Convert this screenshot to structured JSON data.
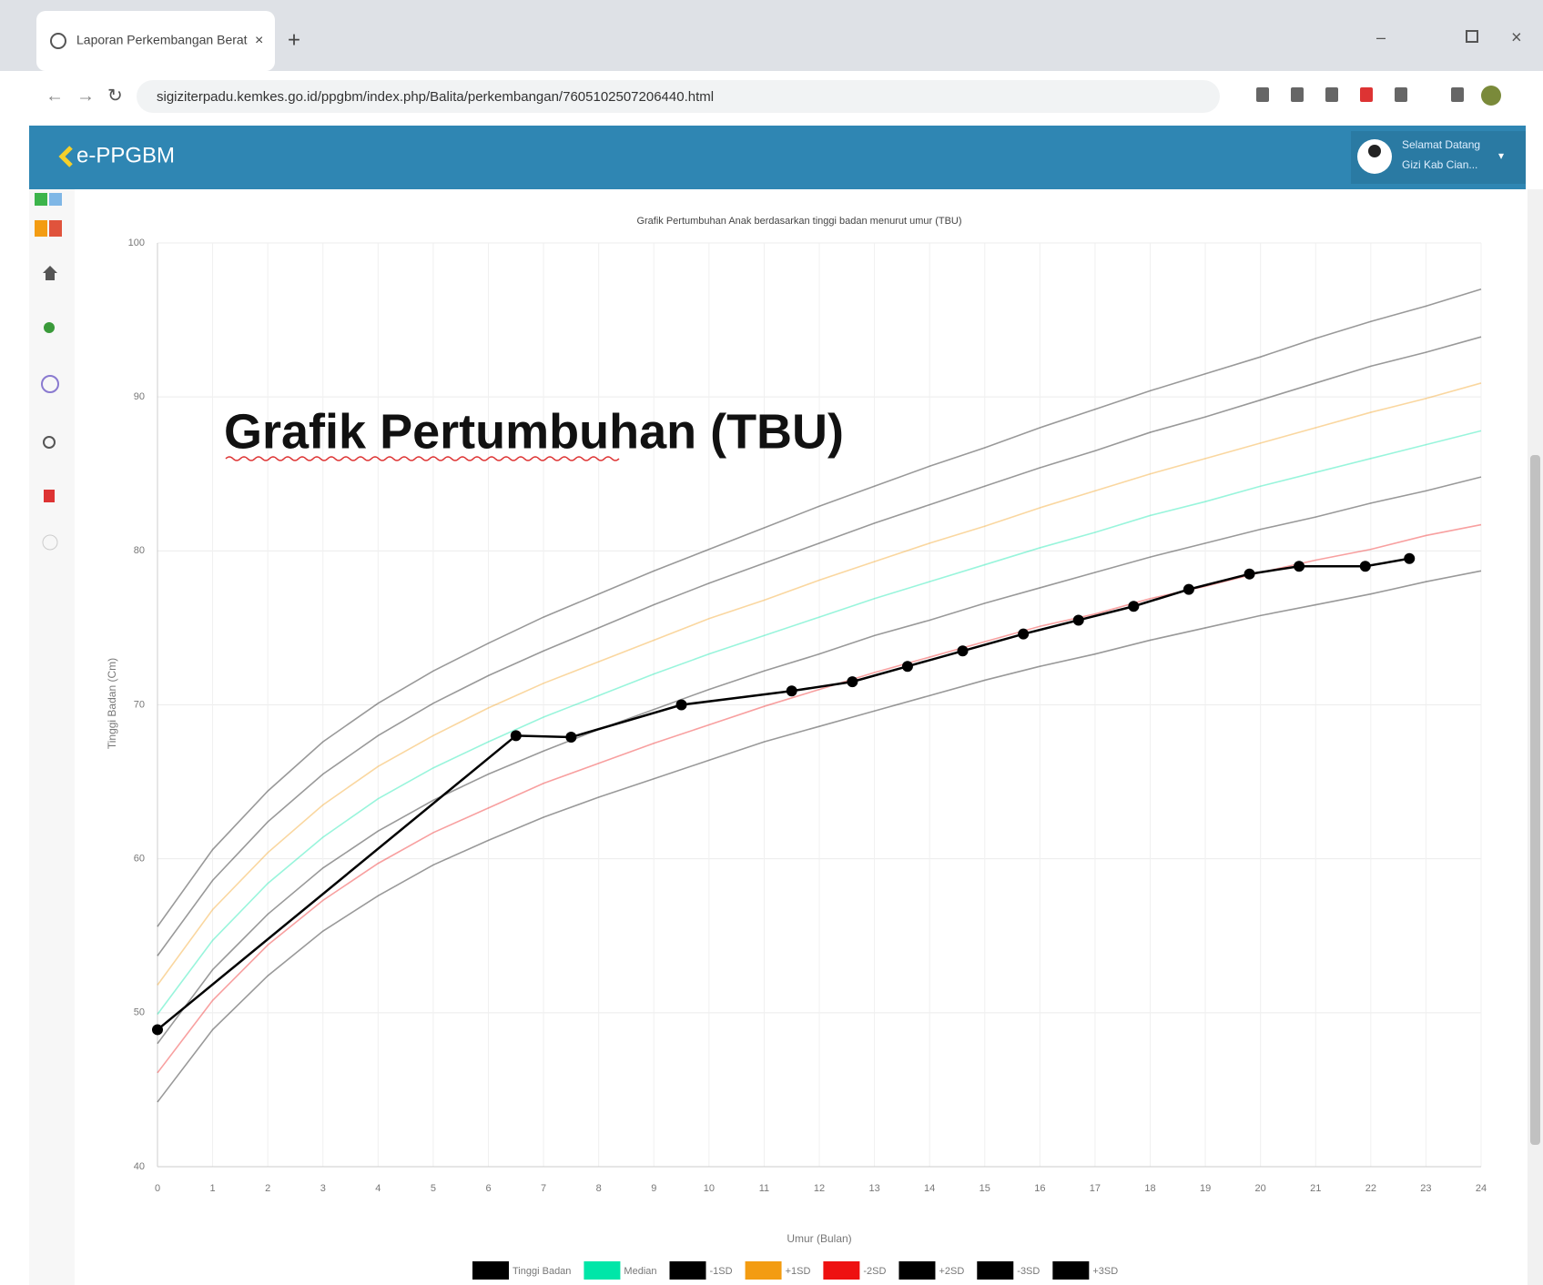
{
  "browser": {
    "tab_title": "Laporan Perkembangan Berat",
    "url": "sigiziterpadu.kemkes.go.id/ppgbm/index.php/Balita/perkembangan/7605102507206440.html"
  },
  "app": {
    "brand": "e-PPGBM",
    "user_greeting": "Selamat Datang",
    "user_name": "Gizi Kab Cian..."
  },
  "annotation": "Grafik Pertumbuhan (TBU)",
  "chart_data": {
    "type": "line",
    "title": "Grafik Pertumbuhan Anak berdasarkan tinggi badan menurut umur (TBU)",
    "x_label": "Umur (Bulan)",
    "y_label": "Tinggi Badan (Cm)",
    "x": [
      0,
      1,
      2,
      3,
      4,
      5,
      6,
      7,
      8,
      9,
      10,
      11,
      12,
      13,
      14,
      15,
      16,
      17,
      18,
      19,
      20,
      21,
      22,
      23,
      24
    ],
    "xlim": [
      0,
      24
    ],
    "xticks": [
      0,
      1,
      2,
      3,
      4,
      5,
      6,
      7,
      8,
      9,
      10,
      11,
      12,
      13,
      14,
      15,
      16,
      17,
      18,
      19,
      20,
      21,
      22,
      23,
      24
    ],
    "ylim": [
      40,
      100
    ],
    "yticks": [
      40,
      50,
      60,
      70,
      80,
      90,
      100
    ],
    "grid": true,
    "series": [
      {
        "name": "Tinggi Badan",
        "color": "#000000",
        "x": [
          0,
          6.5,
          7.5,
          9.5,
          11.5,
          12.6,
          13.6,
          14.6,
          15.7,
          16.7,
          17.7,
          18.7,
          19.8,
          20.7,
          21.9,
          22.7
        ],
        "values": [
          48.9,
          68.0,
          67.9,
          70.0,
          70.9,
          71.5,
          72.5,
          73.5,
          74.6,
          75.5,
          76.4,
          77.5,
          78.5,
          79.0,
          79.0,
          79.5
        ]
      },
      {
        "name": "Median",
        "color": "#00e6a8",
        "values": [
          49.9,
          54.7,
          58.4,
          61.4,
          63.9,
          65.9,
          67.6,
          69.2,
          70.6,
          72.0,
          73.3,
          74.5,
          75.7,
          76.9,
          78.0,
          79.1,
          80.2,
          81.2,
          82.3,
          83.2,
          84.2,
          85.1,
          86.0,
          86.9,
          87.8
        ]
      },
      {
        "name": "-1SD",
        "color": "#000000",
        "values": [
          48.0,
          52.8,
          56.4,
          59.4,
          61.8,
          63.8,
          65.5,
          67.0,
          68.4,
          69.7,
          71.0,
          72.2,
          73.3,
          74.5,
          75.5,
          76.6,
          77.6,
          78.6,
          79.6,
          80.5,
          81.4,
          82.2,
          83.1,
          83.9,
          84.8
        ]
      },
      {
        "name": "+1SD",
        "color": "#f39c12",
        "values": [
          51.8,
          56.7,
          60.4,
          63.5,
          66.0,
          68.0,
          69.8,
          71.4,
          72.8,
          74.2,
          75.6,
          76.8,
          78.1,
          79.3,
          80.5,
          81.6,
          82.8,
          83.9,
          85.0,
          86.0,
          87.0,
          88.0,
          89.0,
          89.9,
          90.9
        ]
      },
      {
        "name": "-2SD",
        "color": "#ee1111",
        "values": [
          46.1,
          50.8,
          54.4,
          57.3,
          59.7,
          61.7,
          63.3,
          64.9,
          66.2,
          67.5,
          68.7,
          69.9,
          71.0,
          72.1,
          73.1,
          74.1,
          75.1,
          75.9,
          76.9,
          77.7,
          78.6,
          79.4,
          80.1,
          81.0,
          81.7
        ]
      },
      {
        "name": "+2SD",
        "color": "#000000",
        "values": [
          53.7,
          58.6,
          62.4,
          65.5,
          68.0,
          70.1,
          71.9,
          73.5,
          75.0,
          76.5,
          77.9,
          79.2,
          80.5,
          81.8,
          83.0,
          84.2,
          85.4,
          86.5,
          87.7,
          88.7,
          89.8,
          90.9,
          92.0,
          92.9,
          93.9
        ]
      },
      {
        "name": "-3SD",
        "color": "#000000",
        "values": [
          44.2,
          48.9,
          52.4,
          55.3,
          57.6,
          59.6,
          61.2,
          62.7,
          64.0,
          65.2,
          66.4,
          67.6,
          68.6,
          69.6,
          70.6,
          71.6,
          72.5,
          73.3,
          74.2,
          75.0,
          75.8,
          76.5,
          77.2,
          78.0,
          78.7
        ]
      },
      {
        "name": "+3SD",
        "color": "#000000",
        "values": [
          55.6,
          60.6,
          64.4,
          67.6,
          70.1,
          72.2,
          74.0,
          75.7,
          77.2,
          78.7,
          80.1,
          81.5,
          82.9,
          84.2,
          85.5,
          86.7,
          88.0,
          89.2,
          90.4,
          91.5,
          92.6,
          93.8,
          94.9,
          95.9,
          97.0
        ]
      }
    ]
  }
}
